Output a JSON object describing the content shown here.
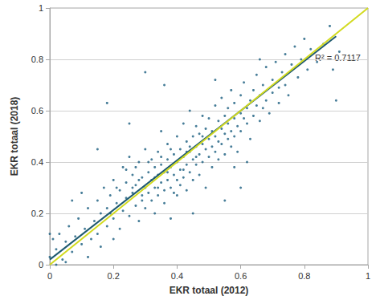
{
  "chart_data": {
    "type": "scatter",
    "x_label": "EKR totaal (2012)",
    "y_label": "EKR totaal (2018)",
    "xlim": [
      0,
      1
    ],
    "ylim": [
      0,
      1
    ],
    "xticks": [
      0,
      0.2,
      0.4,
      0.6,
      0.8,
      1
    ],
    "yticks": [
      0,
      0.2,
      0.4,
      0.6,
      0.8,
      1
    ],
    "grid": true,
    "annotations": [
      {
        "text": "R² = 0.7117"
      }
    ],
    "series": [
      {
        "type": "scatter",
        "color": "#1a5e80",
        "marker": "circle",
        "x": [
          0.0,
          0.01,
          0.02,
          0.03,
          0.04,
          0.05,
          0.06,
          0.07,
          0.08,
          0.09,
          0.1,
          0.11,
          0.12,
          0.13,
          0.14,
          0.15,
          0.15,
          0.16,
          0.17,
          0.18,
          0.18,
          0.19,
          0.2,
          0.2,
          0.21,
          0.22,
          0.22,
          0.23,
          0.23,
          0.24,
          0.24,
          0.25,
          0.25,
          0.26,
          0.26,
          0.27,
          0.27,
          0.28,
          0.28,
          0.29,
          0.29,
          0.3,
          0.3,
          0.3,
          0.31,
          0.31,
          0.32,
          0.32,
          0.32,
          0.33,
          0.33,
          0.33,
          0.34,
          0.34,
          0.34,
          0.35,
          0.35,
          0.35,
          0.36,
          0.36,
          0.36,
          0.37,
          0.37,
          0.37,
          0.38,
          0.38,
          0.38,
          0.39,
          0.39,
          0.4,
          0.4,
          0.4,
          0.41,
          0.41,
          0.41,
          0.42,
          0.42,
          0.42,
          0.43,
          0.43,
          0.43,
          0.44,
          0.44,
          0.44,
          0.45,
          0.45,
          0.45,
          0.46,
          0.46,
          0.46,
          0.47,
          0.47,
          0.47,
          0.48,
          0.48,
          0.48,
          0.49,
          0.49,
          0.49,
          0.5,
          0.5,
          0.5,
          0.51,
          0.51,
          0.51,
          0.52,
          0.52,
          0.52,
          0.53,
          0.53,
          0.53,
          0.54,
          0.54,
          0.54,
          0.55,
          0.55,
          0.55,
          0.56,
          0.56,
          0.56,
          0.57,
          0.57,
          0.57,
          0.58,
          0.58,
          0.58,
          0.59,
          0.59,
          0.6,
          0.6,
          0.6,
          0.61,
          0.61,
          0.62,
          0.62,
          0.63,
          0.63,
          0.64,
          0.64,
          0.65,
          0.65,
          0.66,
          0.66,
          0.67,
          0.67,
          0.68,
          0.68,
          0.69,
          0.7,
          0.7,
          0.71,
          0.72,
          0.72,
          0.73,
          0.74,
          0.74,
          0.75,
          0.76,
          0.77,
          0.78,
          0.79,
          0.8,
          0.81,
          0.82,
          0.84,
          0.86,
          0.88,
          0.9,
          0.91,
          0.89,
          0.18,
          0.3,
          0.36,
          0.25,
          0.45,
          0.55,
          0.6,
          0.62,
          0.15,
          0.07,
          0.28,
          0.31,
          0.34,
          0.37,
          0.39,
          0.42,
          0.44,
          0.46,
          0.48,
          0.29,
          0.33,
          0.35,
          0.38,
          0.4,
          0.43,
          0.26,
          0.24,
          0.21,
          0.19,
          0.27,
          0.02,
          0.0,
          0.05,
          0.12,
          0.16,
          0.2,
          0.1,
          0.52,
          0.66,
          0.58
        ],
        "values": [
          0.03,
          0.1,
          0.06,
          0.12,
          0.02,
          0.09,
          0.15,
          0.05,
          0.11,
          0.18,
          0.08,
          0.14,
          0.22,
          0.1,
          0.17,
          0.25,
          0.12,
          0.2,
          0.3,
          0.15,
          0.22,
          0.27,
          0.18,
          0.33,
          0.24,
          0.14,
          0.29,
          0.38,
          0.21,
          0.26,
          0.32,
          0.19,
          0.42,
          0.28,
          0.35,
          0.23,
          0.31,
          0.4,
          0.17,
          0.27,
          0.34,
          0.3,
          0.45,
          0.22,
          0.36,
          0.28,
          0.33,
          0.41,
          0.25,
          0.3,
          0.38,
          0.2,
          0.35,
          0.44,
          0.27,
          0.32,
          0.39,
          0.52,
          0.29,
          0.36,
          0.24,
          0.41,
          0.33,
          0.47,
          0.3,
          0.38,
          0.18,
          0.43,
          0.35,
          0.4,
          0.27,
          0.5,
          0.37,
          0.45,
          0.31,
          0.42,
          0.55,
          0.34,
          0.39,
          0.48,
          0.29,
          0.44,
          0.36,
          0.6,
          0.41,
          0.5,
          0.33,
          0.46,
          0.39,
          0.54,
          0.43,
          0.35,
          0.51,
          0.47,
          0.58,
          0.4,
          0.45,
          0.53,
          0.3,
          0.49,
          0.42,
          0.57,
          0.46,
          0.52,
          0.38,
          0.5,
          0.62,
          0.44,
          0.48,
          0.56,
          0.41,
          0.53,
          0.47,
          0.65,
          0.51,
          0.58,
          0.43,
          0.55,
          0.49,
          0.61,
          0.52,
          0.46,
          0.68,
          0.57,
          0.5,
          0.63,
          0.54,
          0.44,
          0.59,
          0.66,
          0.52,
          0.57,
          0.71,
          0.61,
          0.55,
          0.64,
          0.49,
          0.68,
          0.58,
          0.62,
          0.74,
          0.56,
          0.66,
          0.7,
          0.61,
          0.77,
          0.64,
          0.59,
          0.72,
          0.67,
          0.79,
          0.69,
          0.63,
          0.75,
          0.82,
          0.7,
          0.66,
          0.78,
          0.85,
          0.73,
          0.8,
          0.88,
          0.76,
          0.84,
          0.79,
          0.86,
          0.93,
          0.64,
          0.83,
          0.76,
          0.63,
          0.75,
          0.7,
          0.55,
          0.2,
          0.25,
          0.3,
          0.4,
          0.45,
          0.25,
          0.33,
          0.4,
          0.3,
          0.36,
          0.28,
          0.37,
          0.46,
          0.42,
          0.5,
          0.25,
          0.34,
          0.42,
          0.45,
          0.33,
          0.44,
          0.3,
          0.37,
          0.3,
          0.2,
          0.38,
          0.0,
          0.12,
          0.01,
          0.03,
          0.07,
          0.1,
          0.28,
          0.72,
          0.8,
          0.38
        ]
      },
      {
        "type": "line",
        "color": "#1f5a70",
        "line_style": "solid",
        "x": [
          0,
          0.9
        ],
        "values": [
          0.02,
          0.89
        ]
      },
      {
        "type": "line",
        "color": "#d2da1e",
        "line_style": "solid",
        "x": [
          0,
          1
        ],
        "values": [
          0,
          1
        ]
      }
    ]
  }
}
